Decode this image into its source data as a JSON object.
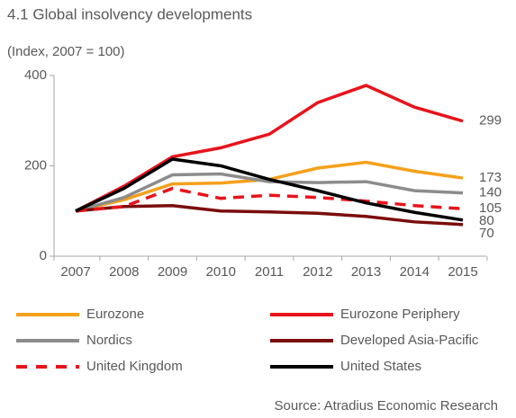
{
  "chart_data": {
    "type": "line",
    "title": "4.1 Global insolvency developments",
    "subtitle": "(Index, 2007 = 100)",
    "source": "Source: Atradius Economic Research",
    "categories": [
      "2007",
      "2008",
      "2009",
      "2010",
      "2011",
      "2012",
      "2013",
      "2014",
      "2015"
    ],
    "ylim": [
      0,
      400
    ],
    "yticks": [
      0,
      200,
      400
    ],
    "series": [
      {
        "name": "Eurozone",
        "color": "#f5a01a",
        "style": "solid",
        "values": [
          100,
          125,
          160,
          162,
          170,
          195,
          208,
          188,
          173
        ]
      },
      {
        "name": "Eurozone Periphery",
        "color": "#e8131b",
        "style": "solid",
        "values": [
          100,
          155,
          220,
          240,
          270,
          340,
          378,
          330,
          299
        ]
      },
      {
        "name": "Nordics",
        "color": "#8c8c8c",
        "style": "solid",
        "values": [
          100,
          130,
          180,
          182,
          165,
          163,
          165,
          145,
          140
        ]
      },
      {
        "name": "Developed Asia-Pacific",
        "color": "#7b0d0d",
        "style": "solid",
        "values": [
          100,
          110,
          112,
          100,
          98,
          95,
          88,
          76,
          70
        ]
      },
      {
        "name": "United Kingdom",
        "color": "#e8131b",
        "style": "dashed",
        "values": [
          100,
          110,
          150,
          128,
          135,
          130,
          122,
          112,
          105
        ]
      },
      {
        "name": "United States",
        "color": "#000000",
        "style": "solid",
        "values": [
          100,
          150,
          215,
          200,
          170,
          145,
          118,
          97,
          80
        ]
      }
    ]
  }
}
